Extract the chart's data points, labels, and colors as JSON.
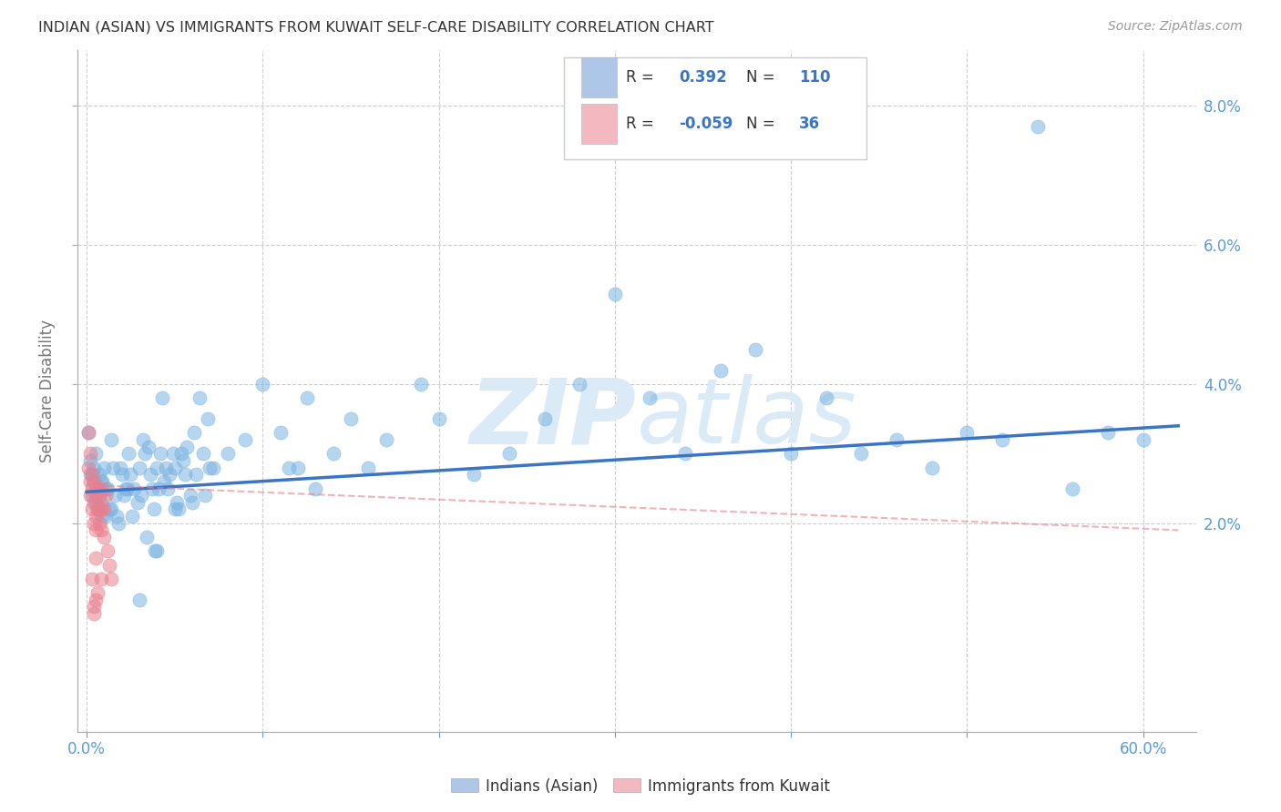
{
  "title": "INDIAN (ASIAN) VS IMMIGRANTS FROM KUWAIT SELF-CARE DISABILITY CORRELATION CHART",
  "source": "Source: ZipAtlas.com",
  "xlabel_ticks_shown": [
    "0.0%",
    "60.0%"
  ],
  "xlabel_ticks_shown_vals": [
    0.0,
    0.6
  ],
  "xlabel_minor_vals": [
    0.1,
    0.2,
    0.3,
    0.4,
    0.5
  ],
  "ylabel_ticks": [
    "2.0%",
    "4.0%",
    "6.0%",
    "8.0%"
  ],
  "ylabel_vals": [
    0.02,
    0.04,
    0.06,
    0.08
  ],
  "ylabel_label": "Self-Care Disability",
  "xlim": [
    -0.005,
    0.63
  ],
  "ylim": [
    -0.01,
    0.088
  ],
  "blue_r": "0.392",
  "blue_n": "110",
  "pink_r": "-0.059",
  "pink_n": "36",
  "legend_label_bottom": [
    "Indians (Asian)",
    "Immigrants from Kuwait"
  ],
  "blue_scatter": [
    [
      0.001,
      0.033
    ],
    [
      0.002,
      0.029
    ],
    [
      0.002,
      0.027
    ],
    [
      0.003,
      0.027
    ],
    [
      0.003,
      0.024
    ],
    [
      0.004,
      0.026
    ],
    [
      0.004,
      0.028
    ],
    [
      0.005,
      0.023
    ],
    [
      0.005,
      0.03
    ],
    [
      0.006,
      0.025
    ],
    [
      0.006,
      0.022
    ],
    [
      0.007,
      0.027
    ],
    [
      0.007,
      0.024
    ],
    [
      0.008,
      0.026
    ],
    [
      0.008,
      0.023
    ],
    [
      0.009,
      0.021
    ],
    [
      0.009,
      0.026
    ],
    [
      0.01,
      0.028
    ],
    [
      0.011,
      0.025
    ],
    [
      0.011,
      0.021
    ],
    [
      0.012,
      0.025
    ],
    [
      0.013,
      0.022
    ],
    [
      0.014,
      0.022
    ],
    [
      0.014,
      0.032
    ],
    [
      0.015,
      0.028
    ],
    [
      0.016,
      0.024
    ],
    [
      0.017,
      0.021
    ],
    [
      0.018,
      0.02
    ],
    [
      0.019,
      0.028
    ],
    [
      0.02,
      0.027
    ],
    [
      0.021,
      0.024
    ],
    [
      0.022,
      0.025
    ],
    [
      0.023,
      0.025
    ],
    [
      0.024,
      0.03
    ],
    [
      0.025,
      0.027
    ],
    [
      0.026,
      0.021
    ],
    [
      0.027,
      0.025
    ],
    [
      0.029,
      0.023
    ],
    [
      0.03,
      0.028
    ],
    [
      0.031,
      0.024
    ],
    [
      0.032,
      0.032
    ],
    [
      0.033,
      0.03
    ],
    [
      0.034,
      0.018
    ],
    [
      0.035,
      0.031
    ],
    [
      0.036,
      0.027
    ],
    [
      0.037,
      0.025
    ],
    [
      0.038,
      0.022
    ],
    [
      0.039,
      0.016
    ],
    [
      0.04,
      0.028
    ],
    [
      0.041,
      0.025
    ],
    [
      0.042,
      0.03
    ],
    [
      0.043,
      0.038
    ],
    [
      0.044,
      0.026
    ],
    [
      0.045,
      0.028
    ],
    [
      0.046,
      0.025
    ],
    [
      0.047,
      0.027
    ],
    [
      0.049,
      0.03
    ],
    [
      0.05,
      0.028
    ],
    [
      0.051,
      0.023
    ],
    [
      0.052,
      0.022
    ],
    [
      0.054,
      0.03
    ],
    [
      0.055,
      0.029
    ],
    [
      0.056,
      0.027
    ],
    [
      0.057,
      0.031
    ],
    [
      0.059,
      0.024
    ],
    [
      0.061,
      0.033
    ],
    [
      0.062,
      0.027
    ],
    [
      0.064,
      0.038
    ],
    [
      0.066,
      0.03
    ],
    [
      0.067,
      0.024
    ],
    [
      0.069,
      0.035
    ],
    [
      0.072,
      0.028
    ],
    [
      0.03,
      0.009
    ],
    [
      0.04,
      0.016
    ],
    [
      0.05,
      0.022
    ],
    [
      0.06,
      0.023
    ],
    [
      0.07,
      0.028
    ],
    [
      0.08,
      0.03
    ],
    [
      0.09,
      0.032
    ],
    [
      0.1,
      0.04
    ],
    [
      0.11,
      0.033
    ],
    [
      0.115,
      0.028
    ],
    [
      0.12,
      0.028
    ],
    [
      0.125,
      0.038
    ],
    [
      0.13,
      0.025
    ],
    [
      0.14,
      0.03
    ],
    [
      0.15,
      0.035
    ],
    [
      0.16,
      0.028
    ],
    [
      0.17,
      0.032
    ],
    [
      0.19,
      0.04
    ],
    [
      0.2,
      0.035
    ],
    [
      0.22,
      0.027
    ],
    [
      0.24,
      0.03
    ],
    [
      0.26,
      0.035
    ],
    [
      0.28,
      0.04
    ],
    [
      0.3,
      0.053
    ],
    [
      0.32,
      0.038
    ],
    [
      0.34,
      0.03
    ],
    [
      0.36,
      0.042
    ],
    [
      0.38,
      0.045
    ],
    [
      0.4,
      0.03
    ],
    [
      0.42,
      0.038
    ],
    [
      0.44,
      0.03
    ],
    [
      0.46,
      0.032
    ],
    [
      0.48,
      0.028
    ],
    [
      0.5,
      0.033
    ],
    [
      0.52,
      0.032
    ],
    [
      0.54,
      0.077
    ],
    [
      0.56,
      0.025
    ],
    [
      0.58,
      0.033
    ],
    [
      0.6,
      0.032
    ]
  ],
  "pink_scatter": [
    [
      0.001,
      0.033
    ],
    [
      0.001,
      0.028
    ],
    [
      0.002,
      0.03
    ],
    [
      0.002,
      0.026
    ],
    [
      0.002,
      0.024
    ],
    [
      0.003,
      0.022
    ],
    [
      0.003,
      0.025
    ],
    [
      0.003,
      0.027
    ],
    [
      0.004,
      0.026
    ],
    [
      0.004,
      0.023
    ],
    [
      0.004,
      0.02
    ],
    [
      0.005,
      0.024
    ],
    [
      0.005,
      0.021
    ],
    [
      0.005,
      0.019
    ],
    [
      0.006,
      0.025
    ],
    [
      0.006,
      0.022
    ],
    [
      0.006,
      0.025
    ],
    [
      0.007,
      0.024
    ],
    [
      0.007,
      0.022
    ],
    [
      0.007,
      0.02
    ],
    [
      0.008,
      0.022
    ],
    [
      0.008,
      0.019
    ],
    [
      0.009,
      0.025
    ],
    [
      0.01,
      0.022
    ],
    [
      0.01,
      0.018
    ],
    [
      0.011,
      0.024
    ],
    [
      0.012,
      0.016
    ],
    [
      0.013,
      0.014
    ],
    [
      0.014,
      0.012
    ],
    [
      0.005,
      0.015
    ],
    [
      0.008,
      0.012
    ],
    [
      0.006,
      0.01
    ],
    [
      0.004,
      0.008
    ],
    [
      0.004,
      0.007
    ],
    [
      0.003,
      0.012
    ],
    [
      0.005,
      0.009
    ]
  ],
  "blue_line_x": [
    0.0,
    0.62
  ],
  "blue_line_y": [
    0.0245,
    0.034
  ],
  "pink_line_x": [
    0.0,
    0.62
  ],
  "pink_line_y": [
    0.0255,
    0.019
  ],
  "blue_dot_color": "#7ab3e0",
  "pink_dot_color": "#e8808f",
  "blue_line_color": "#3a75c4",
  "pink_line_color": "#e8808f",
  "legend_blue_box": "#aec6e8",
  "legend_pink_box": "#f4b8c1",
  "legend_text_color": "#3a75c4",
  "grid_color": "#cccccc",
  "watermark_color": "#daeaf7",
  "background_color": "#ffffff",
  "axis_color": "#aaaaaa",
  "tick_label_color": "#5b9bd5"
}
